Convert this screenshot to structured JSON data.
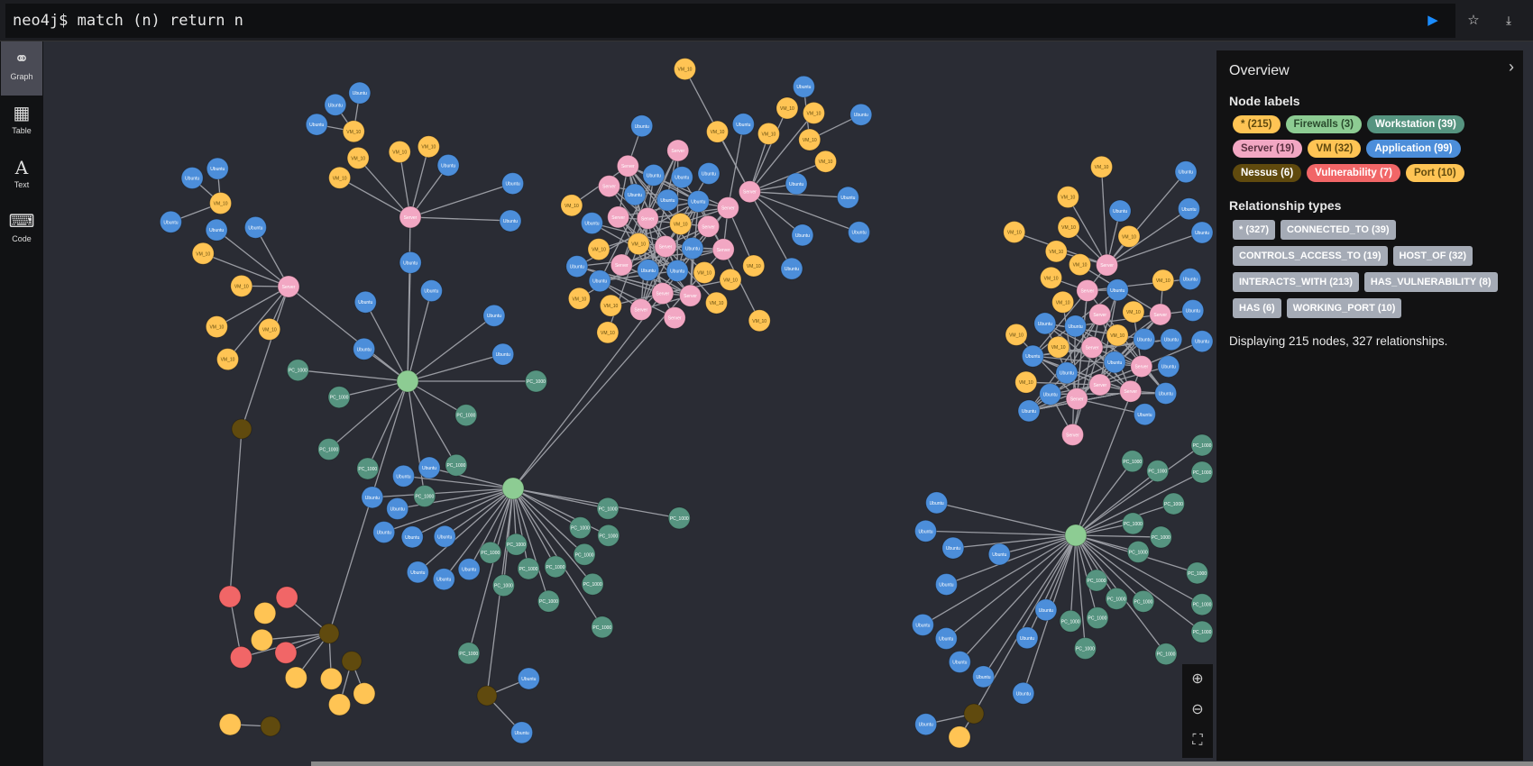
{
  "query": {
    "prompt": "neo4j$",
    "text": "match (n) return n"
  },
  "toolbar": {
    "run_icon": "play-icon",
    "favorite_icon": "star-icon",
    "download_icon": "download-icon"
  },
  "sidebar": {
    "items": [
      {
        "label": "Graph",
        "icon": "graph-icon",
        "active": true
      },
      {
        "label": "Table",
        "icon": "table-icon"
      },
      {
        "label": "Text",
        "icon": "text-icon"
      },
      {
        "label": "Code",
        "icon": "code-icon"
      }
    ]
  },
  "overview": {
    "title": "Overview",
    "node_labels_title": "Node labels",
    "node_labels": [
      {
        "label": "* (215)",
        "bg": "#ffc454",
        "fg": "#604a0e"
      },
      {
        "label": "Firewalls (3)",
        "bg": "#8dcc93",
        "fg": "#2a4a2d"
      },
      {
        "label": "Workstation (39)",
        "bg": "#569480",
        "fg": "#ffffff"
      },
      {
        "label": "Server (19)",
        "bg": "#f2a7c3",
        "fg": "#5a3040"
      },
      {
        "label": "VM (32)",
        "bg": "#ffc454",
        "fg": "#604a0e"
      },
      {
        "label": "Application (99)",
        "bg": "#4c8eda",
        "fg": "#ffffff"
      },
      {
        "label": "Nessus (6)",
        "bg": "#604a0e",
        "fg": "#ffffff"
      },
      {
        "label": "Vulnerability (7)",
        "bg": "#f16667",
        "fg": "#ffffff"
      },
      {
        "label": "Port (10)",
        "bg": "#ffc454",
        "fg": "#604a0e"
      }
    ],
    "relationship_types_title": "Relationship types",
    "relationship_types": [
      "* (327)",
      "CONNECTED_TO (39)",
      "CONTROLS_ACCESS_TO (19)",
      "HOST_OF (32)",
      "INTERACTS_WITH (213)",
      "HAS_VULNERABILITY (8)",
      "HAS (6)",
      "WORKING_PORT (10)"
    ],
    "status": "Displaying 215 nodes, 327 relationships."
  },
  "node_colors": {
    "Firewalls": "#8dcc93",
    "Workstation": "#569480",
    "Server": "#f2a7c3",
    "VM": "#ffc454",
    "Application": "#4c8eda",
    "Nessus": "#604a0e",
    "Vulnerability": "#f16667",
    "Port": "#ffc454"
  },
  "node_captions": {
    "Application": "Ubuntu",
    "Workstation": "PC_1000",
    "Server": "Server",
    "VM": "VM_10",
    "Firewalls": "",
    "Nessus": "",
    "Vulnerability": "",
    "Port": ""
  },
  "zoom_controls": [
    "zoom-in-icon",
    "zoom-out-icon",
    "fit-icon"
  ]
}
